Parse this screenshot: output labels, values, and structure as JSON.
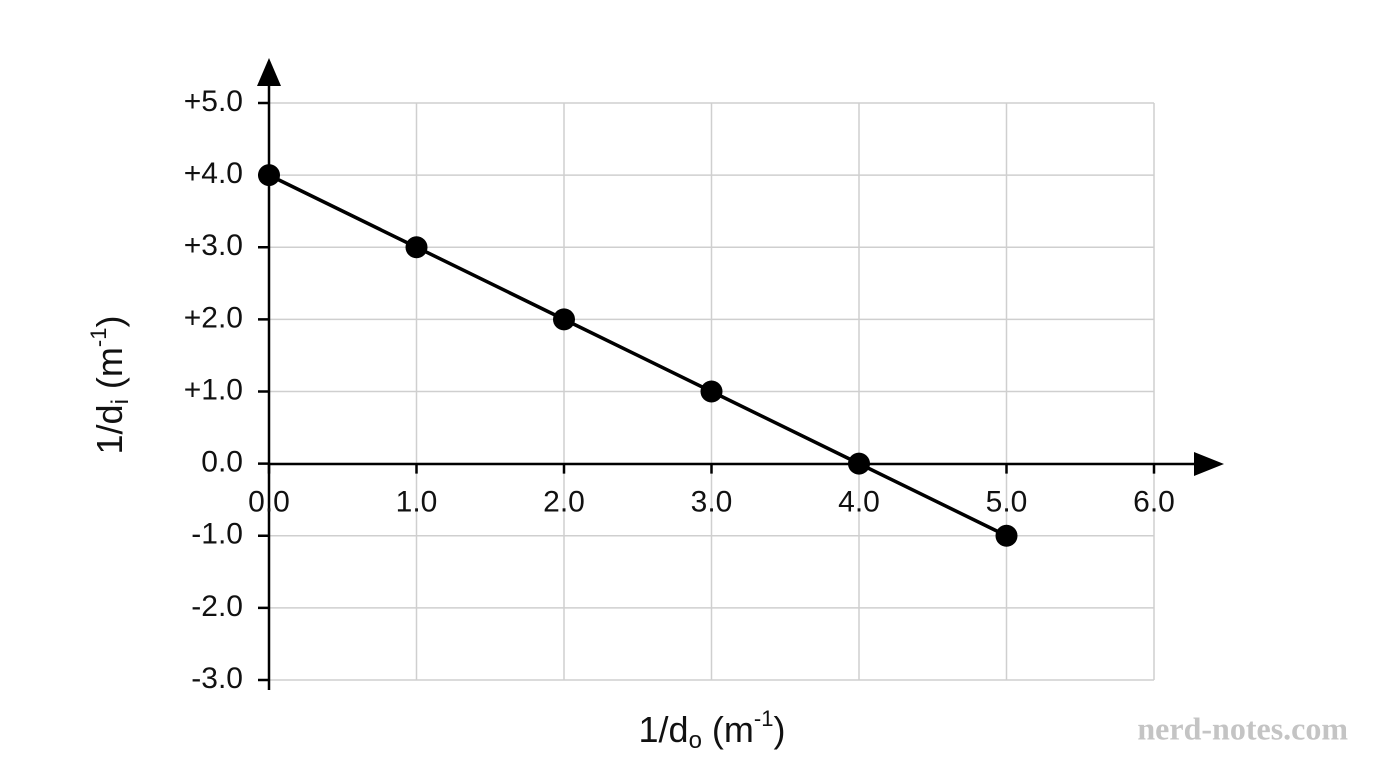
{
  "chart_data": {
    "type": "line",
    "x": [
      0,
      1,
      2,
      3,
      4,
      5
    ],
    "values": [
      4,
      3,
      2,
      1,
      0,
      -1
    ],
    "color": "#000000",
    "markers": true,
    "xlim": [
      0,
      6
    ],
    "ylim": [
      -3,
      5
    ],
    "xticks": [
      {
        "value": 0,
        "label": "0.0"
      },
      {
        "value": 1,
        "label": "1.0"
      },
      {
        "value": 2,
        "label": "2.0"
      },
      {
        "value": 3,
        "label": "3.0"
      },
      {
        "value": 4,
        "label": "4.0"
      },
      {
        "value": 5,
        "label": "5.0"
      },
      {
        "value": 6,
        "label": "6.0"
      }
    ],
    "yticks": [
      {
        "value": -3,
        "label": "-3.0"
      },
      {
        "value": -2,
        "label": "-2.0"
      },
      {
        "value": -1,
        "label": "-1.0"
      },
      {
        "value": 0,
        "label": "0.0"
      },
      {
        "value": 1,
        "label": "+1.0"
      },
      {
        "value": 2,
        "label": "+2.0"
      },
      {
        "value": 3,
        "label": "+3.0"
      },
      {
        "value": 4,
        "label": "+4.0"
      },
      {
        "value": 5,
        "label": "+5.0"
      }
    ],
    "grid": true,
    "x_label": [
      "1/d",
      "o",
      " (m",
      "-1",
      ")"
    ],
    "y_label": [
      "1/d",
      "i",
      " (m",
      "-1",
      ")"
    ],
    "watermark": "nerd-notes.com"
  }
}
